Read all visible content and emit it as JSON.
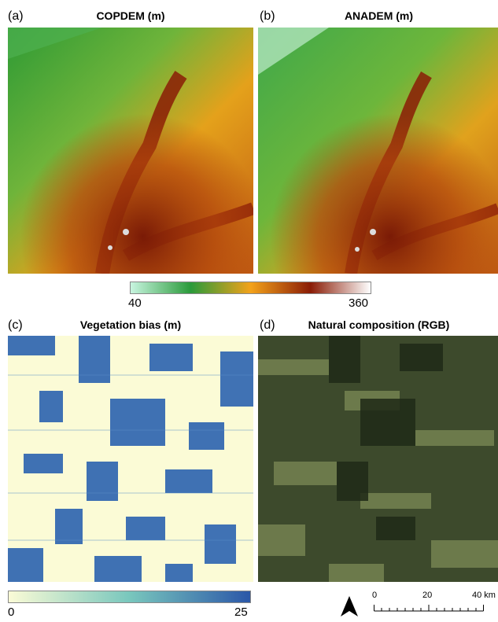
{
  "panels": [
    {
      "letter": "(a)",
      "title": "COPDEM (m)"
    },
    {
      "letter": "(b)",
      "title": "ANADEM (m)"
    },
    {
      "letter": "(c)",
      "title": "Vegetation bias (m)"
    },
    {
      "letter": "(d)",
      "title": "Natural composition (RGB)"
    }
  ],
  "elevation_colorbar": {
    "min_label": "40",
    "max_label": "360",
    "colors": [
      "#c8f5e0",
      "#2a9a3a",
      "#f3a21a",
      "#8a1c06",
      "#ffffff"
    ]
  },
  "vegetation_colorbar": {
    "min_label": "0",
    "max_label": "25",
    "colors": [
      "#fbfbd6",
      "#79c7bd",
      "#2b57a8"
    ]
  },
  "scale_bar": {
    "labels": [
      "0",
      "20",
      "40 km"
    ]
  },
  "north_arrow_icon": "north-arrow-icon"
}
